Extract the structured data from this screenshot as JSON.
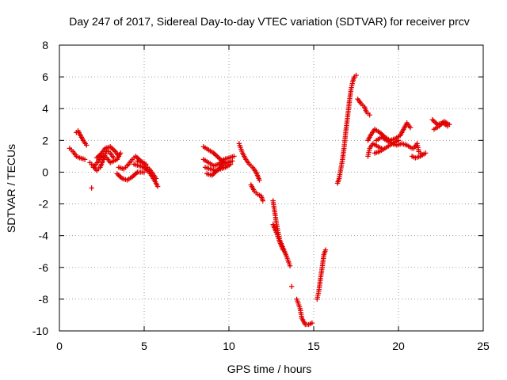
{
  "chart_data": {
    "type": "scatter",
    "title": "Day 247 of 2017, Sidereal Day-to-day VTEC variation (SDTVAR) for receiver prcv",
    "xlabel": "GPS time / hours",
    "ylabel": "SDTVAR / TECUs",
    "xlim": [
      0,
      25
    ],
    "ylim": [
      -10,
      8
    ],
    "xticks": [
      0,
      5,
      10,
      15,
      20,
      25
    ],
    "yticks": [
      -10,
      -8,
      -6,
      -4,
      -2,
      0,
      2,
      4,
      6,
      8
    ],
    "grid": true,
    "marker": "plus",
    "color": "#e00000",
    "tracks": [
      [
        [
          0.6,
          1.5
        ],
        [
          0.8,
          1.3
        ],
        [
          1.0,
          1.0
        ],
        [
          1.2,
          0.9
        ],
        [
          1.5,
          0.8
        ]
      ],
      [
        [
          1.0,
          2.5
        ],
        [
          1.1,
          2.6
        ],
        [
          1.2,
          2.4
        ],
        [
          1.4,
          2.0
        ],
        [
          1.6,
          1.7
        ]
      ],
      [
        [
          1.9,
          -1.0
        ]
      ],
      [
        [
          1.8,
          0.6
        ],
        [
          2.0,
          0.4
        ],
        [
          2.2,
          0.1
        ],
        [
          2.4,
          0.3
        ],
        [
          2.6,
          0.8
        ],
        [
          2.8,
          1.4
        ],
        [
          3.0,
          1.2
        ],
        [
          3.2,
          0.9
        ]
      ],
      [
        [
          2.0,
          0.3
        ],
        [
          2.3,
          0.7
        ],
        [
          2.5,
          1.0
        ],
        [
          2.8,
          0.9
        ],
        [
          3.0,
          0.6
        ],
        [
          3.4,
          0.8
        ],
        [
          3.6,
          1.2
        ]
      ],
      [
        [
          2.2,
          0.9
        ],
        [
          2.5,
          1.2
        ],
        [
          2.7,
          1.5
        ],
        [
          3.0,
          1.6
        ],
        [
          3.3,
          1.3
        ],
        [
          3.5,
          1.0
        ]
      ],
      [
        [
          3.4,
          -0.1
        ],
        [
          3.7,
          -0.4
        ],
        [
          4.0,
          -0.5
        ],
        [
          4.3,
          -0.3
        ],
        [
          4.6,
          0.0
        ],
        [
          5.0,
          0.0
        ]
      ],
      [
        [
          3.5,
          0.3
        ],
        [
          3.8,
          0.2
        ],
        [
          4.0,
          0.4
        ],
        [
          4.3,
          0.8
        ],
        [
          4.5,
          1.0
        ],
        [
          4.8,
          0.7
        ],
        [
          5.1,
          0.5
        ]
      ],
      [
        [
          4.4,
          0.5
        ],
        [
          4.7,
          0.4
        ],
        [
          5.0,
          0.3
        ],
        [
          5.3,
          0.0
        ],
        [
          5.6,
          -0.5
        ],
        [
          5.8,
          -0.9
        ]
      ],
      [
        [
          4.6,
          0.7
        ],
        [
          4.9,
          0.6
        ],
        [
          5.1,
          0.4
        ],
        [
          5.3,
          0.2
        ],
        [
          5.5,
          -0.1
        ],
        [
          5.7,
          -0.4
        ]
      ],
      [
        [
          8.5,
          1.6
        ],
        [
          8.8,
          1.4
        ],
        [
          9.1,
          1.2
        ],
        [
          9.4,
          0.9
        ],
        [
          9.7,
          0.6
        ],
        [
          10.0,
          0.6
        ]
      ],
      [
        [
          8.5,
          0.8
        ],
        [
          8.8,
          0.6
        ],
        [
          9.1,
          0.4
        ],
        [
          9.4,
          0.5
        ],
        [
          9.7,
          0.8
        ],
        [
          10.0,
          0.9
        ],
        [
          10.3,
          1.0
        ]
      ],
      [
        [
          8.6,
          0.3
        ],
        [
          8.9,
          0.2
        ],
        [
          9.2,
          0.1
        ],
        [
          9.5,
          0.2
        ],
        [
          9.8,
          0.3
        ],
        [
          10.1,
          0.5
        ]
      ],
      [
        [
          8.7,
          -0.1
        ],
        [
          9.0,
          -0.2
        ],
        [
          9.3,
          0.1
        ],
        [
          9.6,
          0.4
        ],
        [
          9.9,
          0.6
        ],
        [
          10.2,
          0.7
        ]
      ],
      [
        [
          10.6,
          1.8
        ],
        [
          10.8,
          1.2
        ],
        [
          11.0,
          0.8
        ],
        [
          11.2,
          0.5
        ],
        [
          11.4,
          0.3
        ],
        [
          11.6,
          0.0
        ],
        [
          11.8,
          -0.5
        ]
      ],
      [
        [
          11.3,
          -0.8
        ],
        [
          11.5,
          -1.2
        ],
        [
          11.7,
          -1.4
        ],
        [
          11.9,
          -1.5
        ],
        [
          12.0,
          -1.8
        ]
      ],
      [
        [
          12.6,
          -1.8
        ],
        [
          12.7,
          -2.5
        ],
        [
          12.8,
          -3.2
        ],
        [
          12.9,
          -3.8
        ],
        [
          13.0,
          -4.3
        ],
        [
          13.2,
          -4.8
        ],
        [
          13.4,
          -5.3
        ],
        [
          13.6,
          -5.9
        ]
      ],
      [
        [
          12.6,
          -3.3
        ],
        [
          12.8,
          -3.8
        ],
        [
          13.0,
          -4.4
        ],
        [
          13.2,
          -4.9
        ]
      ],
      [
        [
          13.7,
          -7.2
        ]
      ],
      [
        [
          14.0,
          -8.0
        ],
        [
          14.2,
          -8.6
        ],
        [
          14.3,
          -9.2
        ],
        [
          14.5,
          -9.6
        ],
        [
          14.7,
          -9.6
        ],
        [
          14.9,
          -9.5
        ]
      ],
      [
        [
          15.2,
          -8.0
        ],
        [
          15.3,
          -7.5
        ],
        [
          15.4,
          -6.7
        ],
        [
          15.5,
          -6.0
        ],
        [
          15.6,
          -5.2
        ],
        [
          15.7,
          -4.9
        ]
      ],
      [
        [
          16.4,
          -0.7
        ],
        [
          16.5,
          -0.4
        ],
        [
          16.6,
          0.2
        ],
        [
          16.7,
          0.8
        ],
        [
          16.8,
          1.6
        ],
        [
          16.9,
          2.6
        ],
        [
          17.0,
          3.5
        ],
        [
          17.1,
          4.4
        ],
        [
          17.2,
          5.2
        ],
        [
          17.3,
          5.7
        ],
        [
          17.4,
          6.0
        ],
        [
          17.5,
          6.1
        ]
      ],
      [
        [
          17.6,
          4.6
        ],
        [
          17.8,
          4.3
        ],
        [
          18.0,
          4.1
        ],
        [
          18.1,
          3.8
        ],
        [
          18.3,
          3.6
        ]
      ],
      [
        [
          18.2,
          1.0
        ],
        [
          18.3,
          1.5
        ],
        [
          18.5,
          1.8
        ],
        [
          18.8,
          1.6
        ],
        [
          19.0,
          1.5
        ]
      ],
      [
        [
          18.2,
          2.0
        ],
        [
          18.4,
          2.4
        ],
        [
          18.6,
          2.7
        ],
        [
          18.9,
          2.5
        ],
        [
          19.2,
          2.2
        ],
        [
          19.5,
          2.0
        ],
        [
          19.8,
          2.1
        ],
        [
          20.1,
          2.3
        ],
        [
          20.3,
          2.7
        ],
        [
          20.5,
          3.1
        ],
        [
          20.7,
          2.8
        ]
      ],
      [
        [
          18.6,
          1.2
        ],
        [
          18.9,
          1.3
        ],
        [
          19.2,
          1.5
        ],
        [
          19.5,
          1.7
        ],
        [
          19.8,
          1.9
        ],
        [
          20.0,
          2.0
        ]
      ],
      [
        [
          18.7,
          2.0
        ],
        [
          19.0,
          2.2
        ],
        [
          19.3,
          2.0
        ],
        [
          19.6,
          1.8
        ],
        [
          19.9,
          1.7
        ],
        [
          20.2,
          1.8
        ],
        [
          20.5,
          1.7
        ],
        [
          20.8,
          1.5
        ]
      ],
      [
        [
          20.8,
          1.0
        ],
        [
          21.0,
          0.9
        ],
        [
          21.3,
          1.0
        ],
        [
          21.6,
          1.2
        ]
      ],
      [
        [
          20.9,
          1.5
        ],
        [
          21.1,
          1.8
        ],
        [
          21.2,
          1.3
        ],
        [
          21.4,
          1.1
        ]
      ],
      [
        [
          22.0,
          3.3
        ],
        [
          22.3,
          3.0
        ],
        [
          22.6,
          3.1
        ],
        [
          22.9,
          2.9
        ]
      ],
      [
        [
          22.1,
          2.7
        ],
        [
          22.4,
          2.9
        ],
        [
          22.7,
          3.2
        ],
        [
          23.0,
          3.0
        ]
      ]
    ]
  }
}
